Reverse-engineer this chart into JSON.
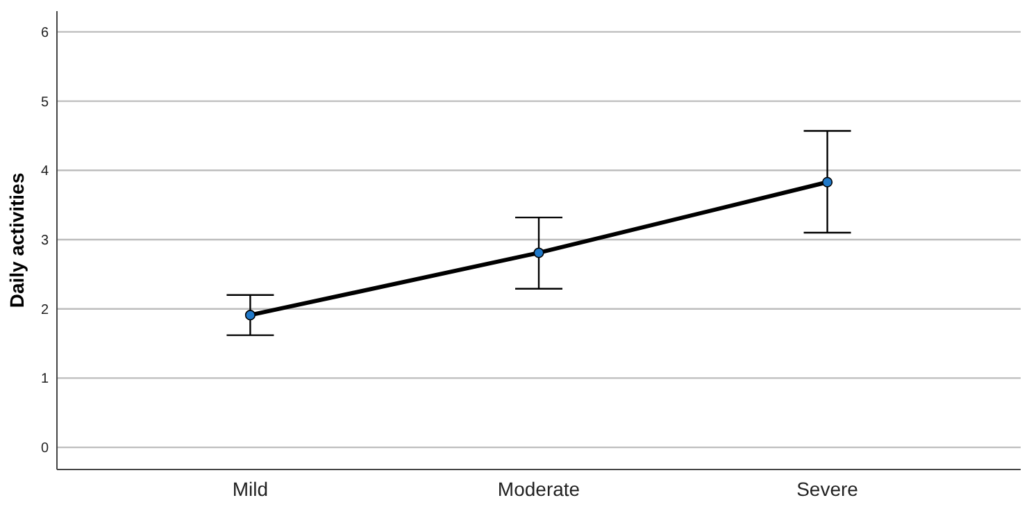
{
  "chart_data": {
    "type": "line",
    "ylabel": "Daily activities",
    "categories": [
      "Mild",
      "Moderate",
      "Severe"
    ],
    "series": [
      {
        "color": "#000000",
        "colors": [
          "#1f78c8",
          "#1f78c8",
          "#1f78c8"
        ],
        "values": [
          1.91,
          2.81,
          3.83
        ],
        "errors": [
          [
            1.62,
            2.2
          ],
          [
            2.29,
            3.32
          ],
          [
            3.1,
            4.57
          ]
        ]
      }
    ],
    "ylim": [
      -0.32,
      6.3
    ],
    "yticks": [
      0,
      1,
      2,
      3,
      4,
      5,
      6
    ],
    "grid": "y",
    "marker": "circle",
    "line_style": "solid"
  }
}
